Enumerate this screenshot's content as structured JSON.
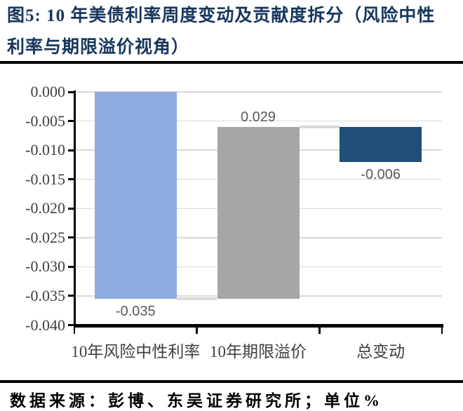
{
  "header": {
    "title_line1": "图5: 10 年美债利率周度变动及贡献度拆分（风险中性",
    "title_line2": "利率与期限溢价视角）",
    "title_color": "#17365D"
  },
  "footer": {
    "source_text": "数据来源：彭博、东吴证券研究所；单位%"
  },
  "chart_data": {
    "type": "bar",
    "subtype": "waterfall",
    "title": "",
    "xlabel": "",
    "ylabel": "",
    "unit": "%",
    "categories": [
      "10年风险中性利率",
      "10年期限溢价",
      "总变动"
    ],
    "values": [
      -0.035,
      0.029,
      -0.006
    ],
    "data_labels": [
      "-0.035",
      "0.029",
      "-0.006"
    ],
    "bars": [
      {
        "name": "bar-10y-risk-neutral-rate",
        "category": "10年风险中性利率",
        "value": -0.035,
        "draw_from": 0,
        "draw_to": -0.0355,
        "label": "-0.035",
        "label_position": "below",
        "color": "#8FAADC"
      },
      {
        "name": "bar-10y-term-premium",
        "category": "10年期限溢价",
        "value": 0.029,
        "draw_from": -0.006,
        "draw_to": -0.0355,
        "label": "0.029",
        "label_position": "above",
        "color": "#A6A6A6"
      },
      {
        "name": "bar-total-change",
        "category": "总变动",
        "value": -0.006,
        "draw_from": -0.006,
        "draw_to": -0.012,
        "label": "-0.006",
        "label_position": "below",
        "color": "#1F4E79"
      }
    ],
    "connectors": [
      {
        "level": -0.0355,
        "from_bar": 0,
        "to_bar": 1
      },
      {
        "level": -0.006,
        "from_bar": 1,
        "to_bar": 2
      }
    ],
    "y_axis": {
      "max": 0,
      "min": -0.04,
      "step": 0.005,
      "tick_labels": [
        "0.000",
        "-0.005",
        "-0.010",
        "-0.015",
        "-0.020",
        "-0.025",
        "-0.030",
        "-0.035",
        "-0.040"
      ]
    },
    "ylim": [
      -0.04,
      0
    ],
    "grid": true,
    "legend": false,
    "colors": {
      "gridline": "#D9D9D9",
      "connector": "#D9D9D9",
      "axis": "#000000",
      "tick_label": "#3F3F3F",
      "data_label": "#595959",
      "category_label": "#3F3F3F"
    }
  }
}
